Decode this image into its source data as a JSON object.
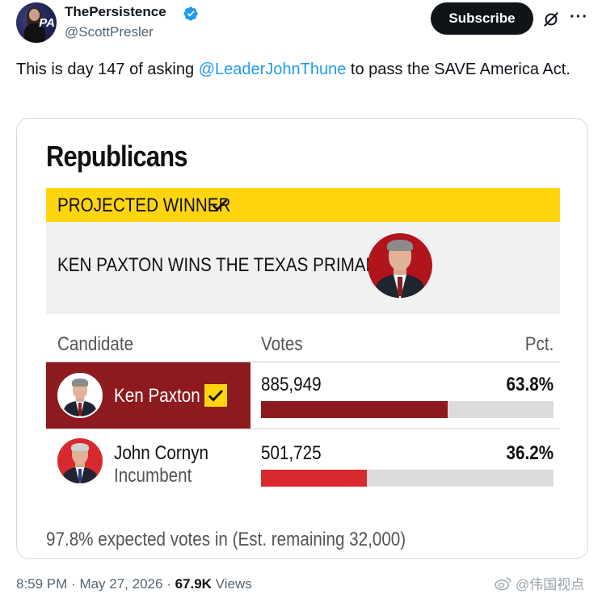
{
  "author": {
    "name": "ThePersistence",
    "handle": "@ScottPresler",
    "avatar_text": "PA"
  },
  "actions": {
    "subscribe_label": "Subscribe",
    "grok_icon": "grok-icon",
    "more_icon": "more-icon",
    "more_glyph": "···"
  },
  "tweet": {
    "text_before": "This is day 147 of asking ",
    "mention": "@LeaderJohnThune",
    "text_after": " to pass the SAVE America Act."
  },
  "card": {
    "title": "Republicans",
    "banner_label": "PROJECTED WINNER",
    "headline": "KEN PAXTON WINS THE TEXAS PRIMARY",
    "columns": {
      "candidate": "Candidate",
      "votes": "Votes",
      "pct": "Pct."
    },
    "candidates": [
      {
        "name": "Ken Paxton",
        "votes": "885,949",
        "pct": "63.8%",
        "share": 63.8,
        "winner": true,
        "bar_color": "#8c1a1e"
      },
      {
        "name": "John Cornyn",
        "subtitle": "Incumbent",
        "votes": "501,725",
        "pct": "36.2%",
        "share": 36.2,
        "winner": false,
        "bar_color": "#d82a2e"
      }
    ],
    "footer": "97.8% expected votes in (Est. remaining 32,000)"
  },
  "meta": {
    "time": "8:59 PM",
    "date": "May 27, 2026",
    "views_count": "67.9K",
    "views_label": "Views"
  },
  "watermark": {
    "text": "@伟国视点"
  },
  "colors": {
    "accent_blue": "#1d9bf0",
    "winner_yellow": "#ffd510",
    "winner_red": "#8c1a1e",
    "runner_red": "#d82a2e"
  }
}
